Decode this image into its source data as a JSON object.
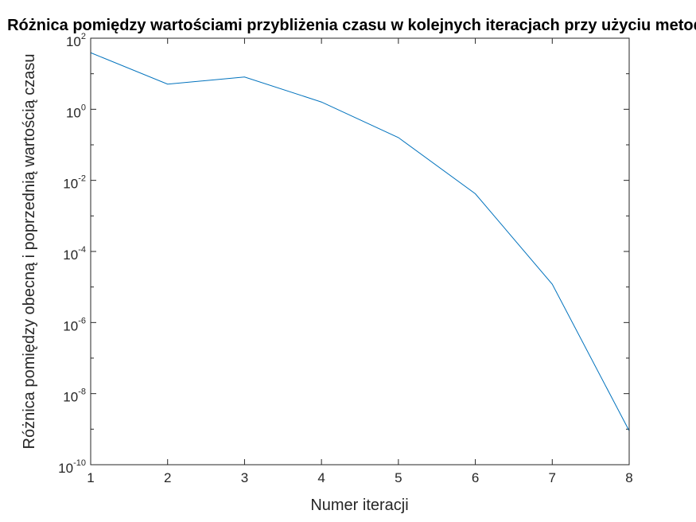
{
  "chart_data": {
    "type": "line",
    "title": "Różnica pomiędzy wartościami przybliżenia czasu w kolejnych iteracjach przy użyciu metody",
    "xlabel": "Numer iteracji",
    "ylabel": "Różnica pomiędzy obecną i poprzednią wartością czasu",
    "xlim": [
      1,
      8
    ],
    "ylim": [
      1e-10,
      100
    ],
    "yscale": "log",
    "grid": false,
    "legend": "none",
    "x_ticks": [
      "1",
      "2",
      "3",
      "4",
      "5",
      "6",
      "7",
      "8"
    ],
    "y_ticks": [
      {
        "value": 1e-10,
        "base": "10",
        "exp": "-10"
      },
      {
        "value": 1e-08,
        "base": "10",
        "exp": "-8"
      },
      {
        "value": 1e-06,
        "base": "10",
        "exp": "-6"
      },
      {
        "value": 0.0001,
        "base": "10",
        "exp": "-4"
      },
      {
        "value": 0.01,
        "base": "10",
        "exp": "-2"
      },
      {
        "value": 1,
        "base": "10",
        "exp": "0"
      },
      {
        "value": 100,
        "base": "10",
        "exp": "2"
      }
    ],
    "series": [
      {
        "color": "#0072bd",
        "x": [
          1,
          2,
          3,
          4,
          5,
          6,
          7,
          8
        ],
        "y": [
          39,
          5.1,
          8.1,
          1.6,
          0.16,
          0.0042,
          1.2e-05,
          9e-10
        ]
      }
    ]
  }
}
